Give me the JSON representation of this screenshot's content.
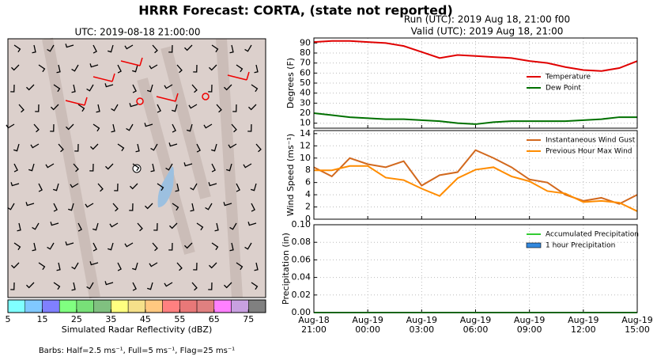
{
  "header": {
    "title": "HRRR Forecast: CORTA, (state not reported)",
    "run": "Run (UTC): 2019 Aug 18, 21:00 f00",
    "valid": "Valid (UTC): 2019 Aug 18, 21:00"
  },
  "map": {
    "title": "UTC: 2019-08-18 21:00:00",
    "colorbar": {
      "label": "Simulated Radar Reflectivity (dBZ)",
      "lim": [
        5,
        80
      ],
      "bins": [
        5,
        10,
        15,
        20,
        25,
        30,
        35,
        40,
        45,
        50,
        55,
        60,
        65,
        70,
        75,
        80
      ],
      "colors": [
        "#80ffff",
        "#80c8ff",
        "#8080ff",
        "#80ff80",
        "#78e078",
        "#80c080",
        "#ffff80",
        "#f5e08a",
        "#ffc880",
        "#ff8080",
        "#e87878",
        "#e08080",
        "#ff80ff",
        "#c8a0e0",
        "#808080"
      ],
      "ticks": [
        5,
        15,
        25,
        35,
        45,
        55,
        65,
        75
      ]
    },
    "barbs_note": "Barbs: Half=2.5 ms⁻¹, Full=5 ms⁻¹, Flag=25 ms⁻¹"
  },
  "chart_data": [
    {
      "type": "line",
      "ylabel": "Degrees (F)",
      "ylim": [
        5,
        95
      ],
      "yticks": [
        10,
        20,
        30,
        40,
        50,
        60,
        70,
        80,
        90
      ],
      "grid": true,
      "legend": "lower right",
      "series": [
        {
          "name": "Temperature",
          "color": "#e00000",
          "values": [
            91,
            92,
            92,
            91,
            90,
            87,
            81,
            75,
            78,
            77,
            76,
            75,
            72,
            70,
            66,
            63,
            62,
            65,
            72
          ]
        },
        {
          "name": "Dew Point",
          "color": "#007000",
          "values": [
            20,
            18,
            16,
            15,
            14,
            14,
            13,
            12,
            10,
            9,
            11,
            12,
            12,
            12,
            12,
            13,
            14,
            16,
            16
          ]
        }
      ]
    },
    {
      "type": "line",
      "ylabel": "Wind Speed (ms⁻¹)",
      "ylim": [
        0,
        14.5
      ],
      "yticks": [
        0,
        2,
        4,
        6,
        8,
        10,
        12,
        14
      ],
      "grid": true,
      "legend": "upper right",
      "series": [
        {
          "name": "Instantaneous Wind Gust",
          "color": "#d2691e",
          "values": [
            8.5,
            7,
            10,
            9,
            8.5,
            9.5,
            5.5,
            7.2,
            7.7,
            11.3,
            10,
            8.5,
            6.5,
            6,
            4,
            3,
            3.5,
            2.5,
            4
          ]
        },
        {
          "name": "Previous Hour Max Wind",
          "color": "#ff8c00",
          "values": [
            8,
            8,
            8.7,
            8.7,
            6.8,
            6.4,
            5,
            3.8,
            6.7,
            8.1,
            8.5,
            7,
            6.2,
            4.6,
            4.2,
            2.8,
            3,
            2.7,
            1.3
          ]
        }
      ]
    },
    {
      "type": "line",
      "ylabel": "Precipitation (in)",
      "ylim": [
        0,
        0.1
      ],
      "grid": true,
      "legend": "upper right",
      "yticks": [
        {
          "value": 0,
          "label": "0.00"
        },
        {
          "value": 0.02,
          "label": "0.02"
        },
        {
          "value": 0.04,
          "label": "0.04"
        },
        {
          "value": 0.06,
          "label": "0.06"
        },
        {
          "value": 0.08,
          "label": "0.08"
        },
        {
          "value": 0.1,
          "label": "0.10"
        }
      ],
      "categories": [
        "Aug-18\n21:00",
        null,
        null,
        "Aug-19\n00:00",
        null,
        null,
        "Aug-19\n03:00",
        null,
        null,
        "Aug-19\n06:00",
        null,
        null,
        "Aug-19\n09:00",
        null,
        null,
        "Aug-19\n12:00",
        null,
        null,
        "Aug-19\n15:00"
      ],
      "series": [
        {
          "name": "Accumulated Precipitation",
          "type": "line",
          "color": "#33cc33",
          "values": [
            0,
            0,
            0,
            0,
            0,
            0,
            0,
            0,
            0,
            0,
            0,
            0,
            0,
            0,
            0,
            0,
            0,
            0,
            0
          ]
        },
        {
          "name": "1 hour Precipitation",
          "type": "bar",
          "color": "#3388dd",
          "values": [
            0,
            0,
            0,
            0,
            0,
            0,
            0,
            0,
            0,
            0,
            0,
            0,
            0,
            0,
            0,
            0,
            0,
            0,
            0
          ]
        }
      ]
    }
  ]
}
